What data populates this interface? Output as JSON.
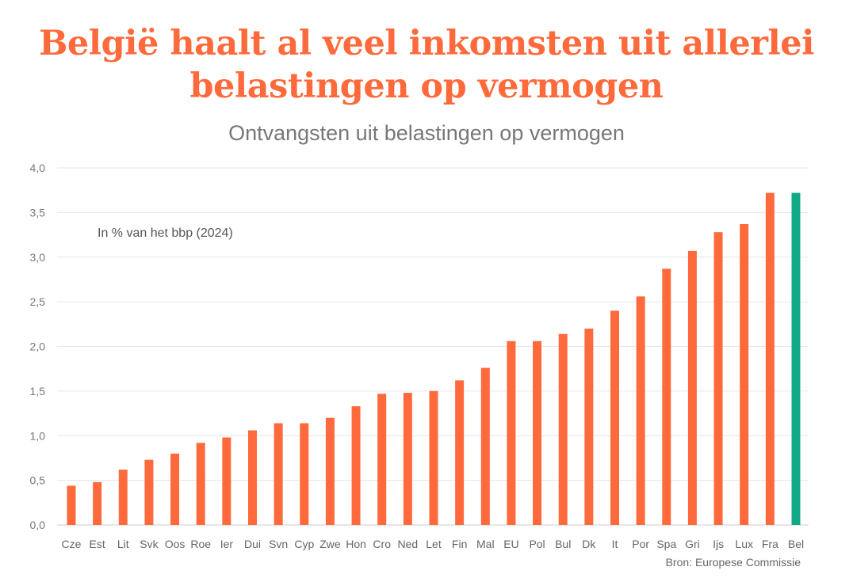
{
  "chart_data": {
    "type": "bar",
    "title": "België haalt al veel inkomsten uit allerlei belastingen op vermogen",
    "subtitle": "Ontvangsten uit belastingen op vermogen",
    "annotation": "In % van het bbp (2024)",
    "source": "Bron: Europese Commissie",
    "categories": [
      "Cze",
      "Est",
      "Lit",
      "Svk",
      "Oos",
      "Roe",
      "Ier",
      "Dui",
      "Svn",
      "Cyp",
      "Zwe",
      "Hon",
      "Cro",
      "Ned",
      "Let",
      "Fin",
      "Mal",
      "EU",
      "Pol",
      "Bul",
      "Dk",
      "It",
      "Por",
      "Spa",
      "Gri",
      "Ijs",
      "Lux",
      "Fra",
      "Bel"
    ],
    "values": [
      0.44,
      0.48,
      0.62,
      0.73,
      0.8,
      0.92,
      0.98,
      1.06,
      1.14,
      1.14,
      1.2,
      1.33,
      1.47,
      1.48,
      1.5,
      1.62,
      1.76,
      2.06,
      2.06,
      2.14,
      2.2,
      2.4,
      2.56,
      2.87,
      3.07,
      3.28,
      3.37,
      3.72,
      3.72
    ],
    "highlight": "Bel",
    "ylim": [
      0,
      4.0
    ],
    "yticks": [
      "0,0",
      "0,5",
      "1,0",
      "1,5",
      "2,0",
      "2,5",
      "3,0",
      "3,5",
      "4,0"
    ],
    "ytick_values": [
      0,
      0.5,
      1.0,
      1.5,
      2.0,
      2.5,
      3.0,
      3.5,
      4.0
    ],
    "grid": true,
    "colors": {
      "bar": "#ff6a3d",
      "highlight": "#12a987",
      "grid": "#e6e6e6",
      "axis": "#cccccc",
      "title": "#ff6a3d"
    }
  }
}
